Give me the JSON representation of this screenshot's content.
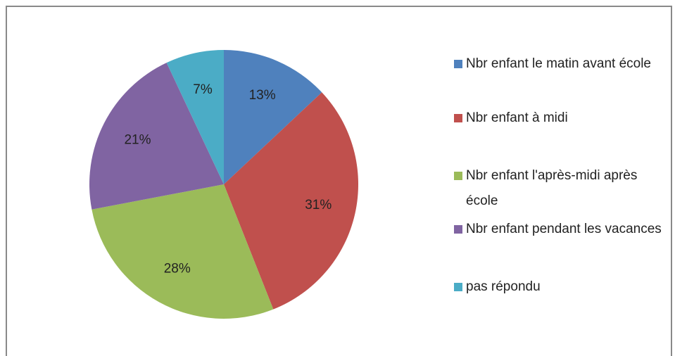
{
  "chart_data": {
    "type": "pie",
    "categories": [
      "Nbr enfant le matin avant école",
      "Nbr enfant à midi",
      "Nbr enfant l'après-midi après école",
      "Nbr enfant pendant les vacances",
      "pas répondu"
    ],
    "values": [
      13,
      31,
      28,
      21,
      7
    ],
    "value_labels": [
      "13%",
      "31%",
      "28%",
      "21%",
      "7%"
    ],
    "colors": [
      "#4f81bd",
      "#c0504d",
      "#9bbb59",
      "#8064a2",
      "#4bacc6"
    ],
    "legend": "right"
  }
}
